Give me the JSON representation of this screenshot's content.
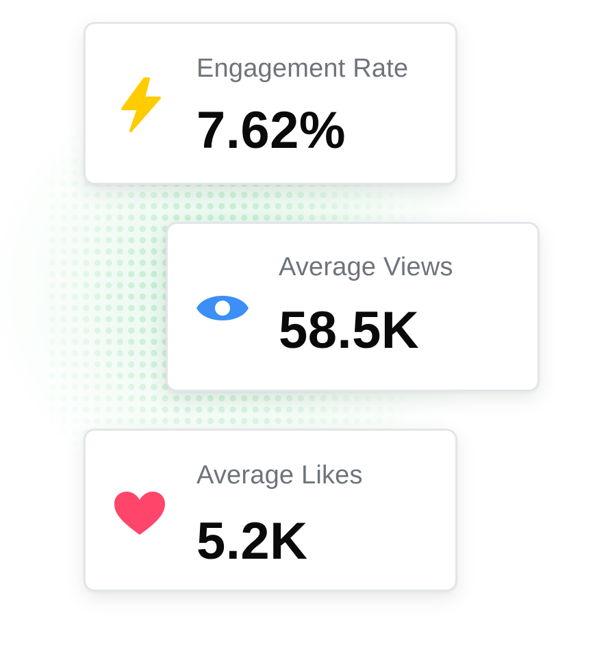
{
  "colors": {
    "lightning": "#FFCC00",
    "eye": "#3B8FF5",
    "heart": "#FF4569",
    "label_text": "#6F737B",
    "value_text": "#0A0A0A",
    "dot_pattern": "#C7EED4"
  },
  "stats": [
    {
      "label": "Engagement Rate",
      "value": "7.62%",
      "icon": "lightning-icon"
    },
    {
      "label": "Average Views",
      "value": "58.5K",
      "icon": "eye-icon"
    },
    {
      "label": "Average Likes",
      "value": "5.2K",
      "icon": "heart-icon"
    }
  ]
}
